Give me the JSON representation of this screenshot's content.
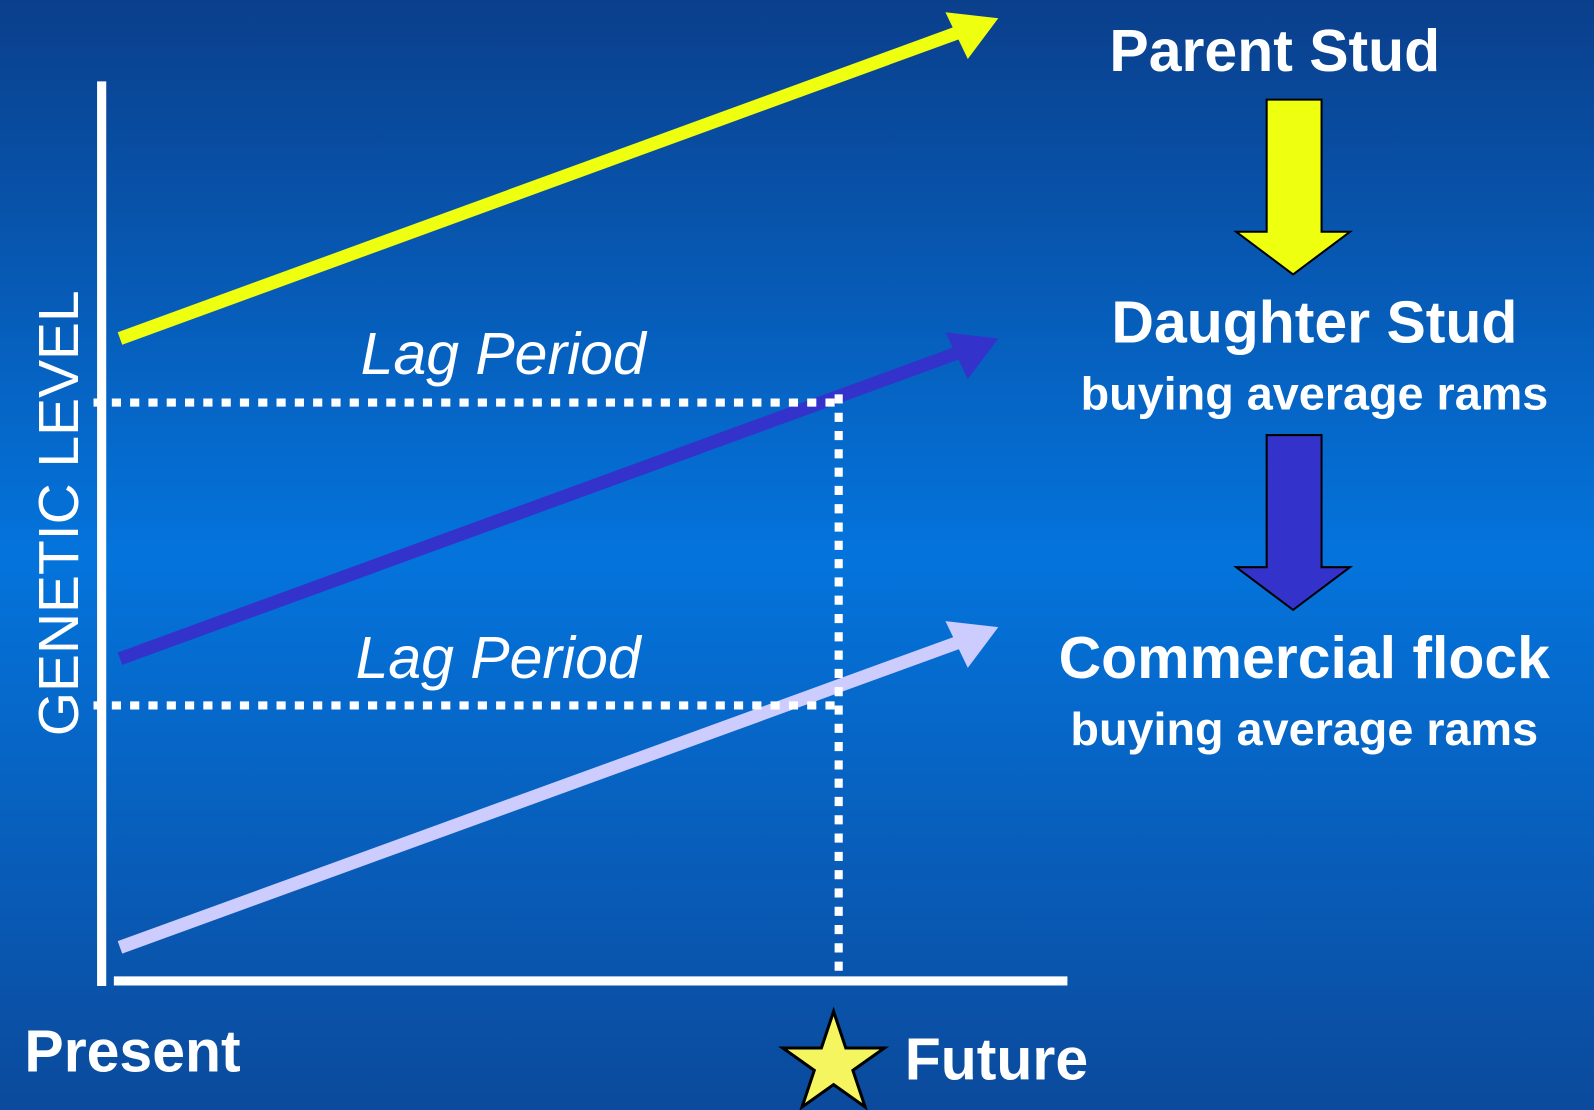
{
  "axis": {
    "y_label": "GENETIC LEVEL",
    "start_label": "Present",
    "end_label": "Future"
  },
  "lag_labels": [
    "Lag Period",
    "Lag Period"
  ],
  "tiers": [
    {
      "title": "Parent Stud"
    },
    {
      "title": "Daughter Stud",
      "subtitle": "buying average rams"
    },
    {
      "title": "Commercial flock",
      "subtitle": "buying average rams"
    }
  ]
}
